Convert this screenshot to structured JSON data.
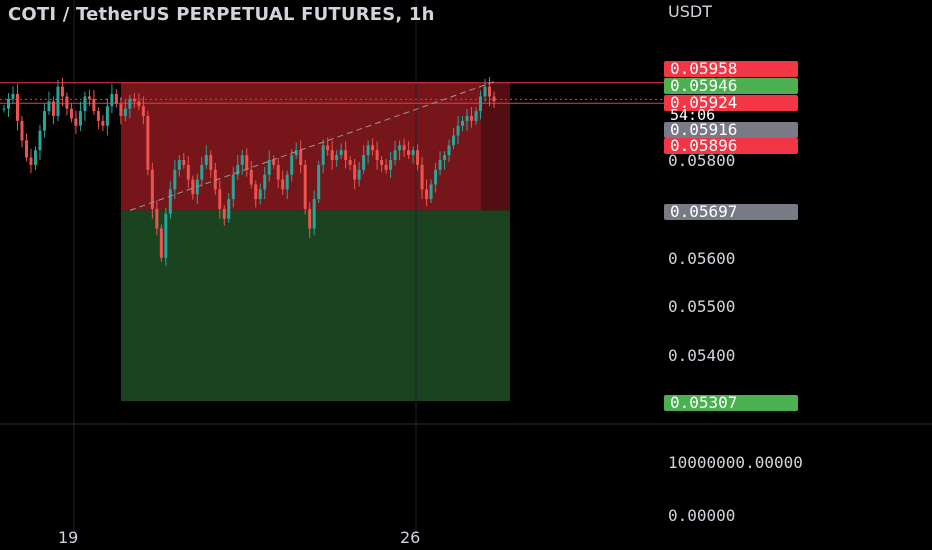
{
  "header": {
    "title": "COTI / TetherUS PERPETUAL FUTURES, 1h",
    "currency": "USDT"
  },
  "countdown": "54:06",
  "colors": {
    "up": "#26a69a",
    "down": "#ef5350",
    "stop_zone": "#8b1a1f",
    "target_zone": "#1e4a22",
    "background": "#000000"
  },
  "price_badges": [
    {
      "value": "0.05958",
      "color": "#f23645"
    },
    {
      "value": "0.05946",
      "color": "#4caf50"
    },
    {
      "value": "0.05924",
      "color": "#f23645"
    },
    {
      "value": "0.05916",
      "color": "#787b86"
    },
    {
      "value": "0.05896",
      "color": "#f23645"
    },
    {
      "value": "0.05697",
      "color": "#787b86"
    },
    {
      "value": "0.05307",
      "color": "#4caf50"
    }
  ],
  "price_axis": [
    "0.05800",
    "0.05600",
    "0.05500",
    "0.05400"
  ],
  "volume_axis": [
    "10000000.00000",
    "0.00000"
  ],
  "date_axis": [
    "19",
    "26"
  ],
  "chart_data": {
    "type": "candlestick",
    "title": "COTI / TetherUS PERPETUAL FUTURES, 1h",
    "y_unit": "USDT",
    "ylim": [
      0.052,
      0.06
    ],
    "x_ticks": [
      "19",
      "26"
    ],
    "position": {
      "type": "short",
      "entry": 0.05697,
      "stop": 0.05958,
      "target": 0.05307
    },
    "last_price": 0.05924,
    "levels": [
      0.05958,
      0.05946,
      0.05924,
      0.05916,
      0.05896
    ],
    "volume_ticks": [
      10000000,
      0
    ],
    "series_shape": [
      0.05905,
      0.05925,
      0.05935,
      0.0588,
      0.0584,
      0.05805,
      0.0579,
      0.0582,
      0.0586,
      0.059,
      0.0592,
      0.0589,
      0.0595,
      0.0593,
      0.05905,
      0.05885,
      0.0587,
      0.059,
      0.0593,
      0.05925,
      0.059,
      0.0588,
      0.0587,
      0.0591,
      0.05935,
      0.05915,
      0.0589,
      0.05905,
      0.05925,
      0.0592,
      0.0591,
      0.0589,
      0.0578,
      0.057,
      0.0566,
      0.056,
      0.0569,
      0.0574,
      0.0578,
      0.058,
      0.0579,
      0.0576,
      0.0573,
      0.0576,
      0.0579,
      0.0581,
      0.0578,
      0.0574,
      0.057,
      0.0568,
      0.0572,
      0.0577,
      0.0579,
      0.0581,
      0.0578,
      0.0575,
      0.0572,
      0.0574,
      0.0577,
      0.058,
      0.0579,
      0.0576,
      0.0574,
      0.0577,
      0.0581,
      0.0582,
      0.0579,
      0.057,
      0.0566,
      0.0572,
      0.0579,
      0.0583,
      0.0582,
      0.058,
      0.0581,
      0.0582,
      0.058,
      0.0579,
      0.0576,
      0.0578,
      0.0581,
      0.0583,
      0.0582,
      0.058,
      0.0579,
      0.0578,
      0.058,
      0.0582,
      0.0583,
      0.0582,
      0.0581,
      0.0582,
      0.0579,
      0.0574,
      0.0572,
      0.0575,
      0.0578,
      0.058,
      0.0581,
      0.0583,
      0.0585,
      0.0587,
      0.0588,
      0.0589,
      0.0588,
      0.059,
      0.0593,
      0.0595,
      0.0593,
      0.0592
    ]
  }
}
